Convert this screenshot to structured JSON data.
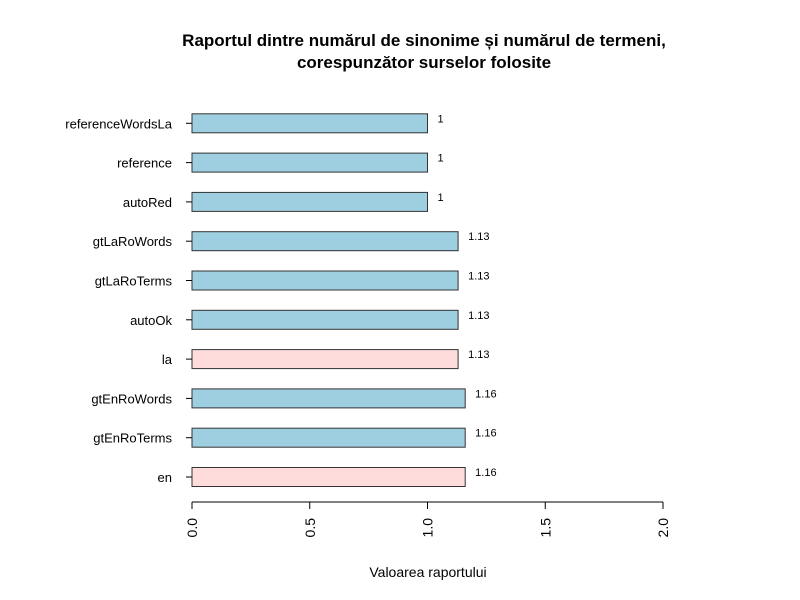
{
  "chart_data": {
    "type": "bar",
    "orientation": "horizontal",
    "title": "Raportul dintre numărul de sinonime și numărul de termeni,",
    "title_line2": "corespunzător surselor folosite",
    "xlabel": "Valoarea raportului",
    "ylabel": "",
    "xlim": [
      0,
      2
    ],
    "x_ticks": [
      "0.0",
      "0.5",
      "1.0",
      "1.5",
      "2.0"
    ],
    "grid": false,
    "categories": [
      "en",
      "gtEnRoTerms",
      "gtEnRoWords",
      "la",
      "autoOk",
      "gtLaRoTerms",
      "gtLaRoWords",
      "autoRed",
      "reference",
      "referenceWordsLa"
    ],
    "values": [
      1.16,
      1.16,
      1.16,
      1.13,
      1.13,
      1.13,
      1.13,
      1,
      1,
      1
    ],
    "value_labels": [
      "1.16",
      "1.16",
      "1.16",
      "1.13",
      "1.13",
      "1.13",
      "1.13",
      "1",
      "1",
      "1"
    ],
    "bar_colors": [
      "#ffdcdc",
      "#9ecfe0",
      "#9ecfe0",
      "#ffdcdc",
      "#9ecfe0",
      "#9ecfe0",
      "#9ecfe0",
      "#9ecfe0",
      "#9ecfe0",
      "#9ecfe0"
    ],
    "bar_border_color": "#333333"
  }
}
